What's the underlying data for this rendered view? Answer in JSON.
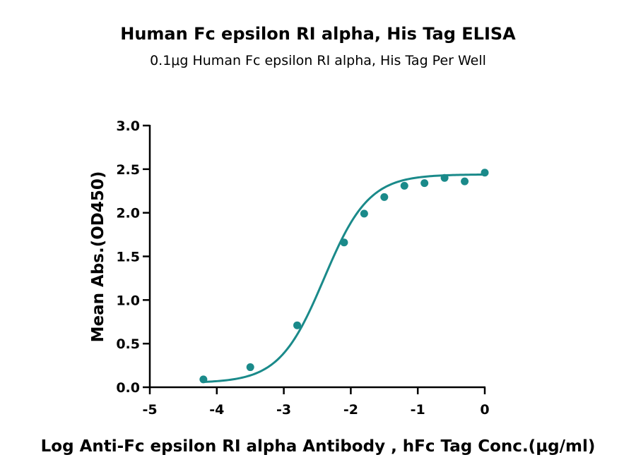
{
  "chart_data": {
    "type": "scatter",
    "title": "Human Fc epsilon RI alpha, His Tag ELISA",
    "subtitle": "0.1μg Human Fc epsilon RI alpha, His Tag Per Well",
    "xlabel": "Log Anti-Fc epsilon RI alpha Antibody , hFc Tag Conc.(μg/ml)",
    "ylabel": "Mean Abs.(OD450)",
    "xlim": [
      -5,
      0
    ],
    "ylim": [
      0,
      3.0
    ],
    "xticks": [
      "-5",
      "-4",
      "-3",
      "-2",
      "-1",
      "0"
    ],
    "yticks": [
      "0.0",
      "0.5",
      "1.0",
      "1.5",
      "2.0",
      "2.5",
      "3.0"
    ],
    "grid": false,
    "color": "#1a8a8a",
    "series": [
      {
        "x": [
          -4.2,
          -3.5,
          -2.8,
          -2.1,
          -1.8,
          -1.5,
          -1.2,
          -0.9,
          -0.6,
          -0.3,
          0.0
        ],
        "y": [
          0.09,
          0.23,
          0.71,
          1.66,
          1.99,
          2.18,
          2.31,
          2.34,
          2.4,
          2.36,
          2.46
        ],
        "fit": {
          "model": "4PL",
          "bottom": 0.05,
          "top": 2.44,
          "logEC50": -2.4,
          "hill": 1.3
        }
      }
    ]
  }
}
